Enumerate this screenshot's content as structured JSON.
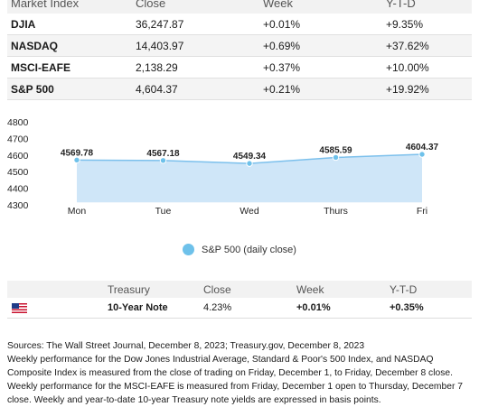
{
  "market_table": {
    "headers": [
      "Market Index",
      "Close",
      "Week",
      "Y-T-D"
    ],
    "rows": [
      {
        "name": "DJIA",
        "close": "36,247.87",
        "week": "+0.01%",
        "ytd": "+9.35%"
      },
      {
        "name": "NASDAQ",
        "close": "14,403.97",
        "week": "+0.69%",
        "ytd": "+37.62%"
      },
      {
        "name": "MSCI-EAFE",
        "close": "2,138.29",
        "week": "+0.37%",
        "ytd": "+10.00%"
      },
      {
        "name": "S&P 500",
        "close": "4,604.37",
        "week": "+0.21%",
        "ytd": "+19.92%"
      }
    ]
  },
  "chart_data": {
    "type": "area",
    "categories": [
      "Mon",
      "Tue",
      "Wed",
      "Thurs",
      "Fri"
    ],
    "series": [
      {
        "name": "S&P 500 (daily close)",
        "values": [
          4569.78,
          4567.18,
          4549.34,
          4585.59,
          4604.37
        ]
      }
    ],
    "data_labels": [
      "4569.78",
      "4567.18",
      "4549.34",
      "4585.59",
      "4604.37"
    ],
    "y_ticks": [
      4800,
      4700,
      4600,
      4500,
      4400,
      4300
    ],
    "ylim": [
      4250,
      4800
    ],
    "grid": false,
    "legend": "bottom-center",
    "colors": {
      "fill": "#cfe6f8",
      "line": "#7cc0ec",
      "marker": "#6ec1ea"
    }
  },
  "treasury_table": {
    "headers": [
      "",
      "Treasury",
      "Close",
      "Week",
      "Y-T-D"
    ],
    "row": {
      "icon": "us-flag-icon",
      "name": "10-Year Note",
      "close": "4.23%",
      "week": "+0.01%",
      "ytd": "+0.35%"
    }
  },
  "footnote": {
    "line1": "Sources: The Wall Street Journal, December 8, 2023; Treasury.gov, December 8, 2023",
    "line2": "Weekly performance for the Dow Jones Industrial Average, Standard & Poor's 500 Index, and NASDAQ Composite Index is measured from the close of trading on Friday, December 1, to Friday, December 8 close.",
    "line3": "Weekly performance for the MSCI-EAFE is measured from Friday, December 1 open to Thursday, December 7 close. Weekly and year-to-date 10-year Treasury note yields are expressed in basis points."
  }
}
